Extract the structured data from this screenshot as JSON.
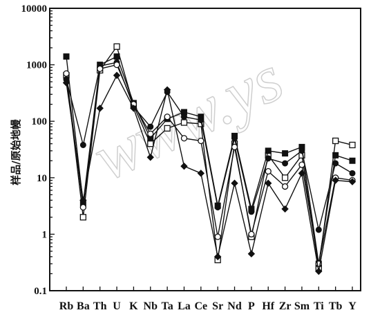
{
  "chart_data": {
    "type": "line",
    "title": "",
    "xlabel": "",
    "ylabel": "样品/原始地幔",
    "y_scale": "log",
    "ylim": [
      0.1,
      10000
    ],
    "y_ticks": [
      "0.1",
      "1",
      "10",
      "100",
      "1000",
      "10000"
    ],
    "categories": [
      "Rb",
      "Ba",
      "Th",
      "U",
      "K",
      "Nb",
      "Ta",
      "La",
      "Ce",
      "Sr",
      "Nd",
      "P",
      "Hf",
      "Zr",
      "Sm",
      "Ti",
      "Tb",
      "Y"
    ],
    "watermark": "www.ys",
    "series": [
      {
        "marker": "square-open",
        "values": [
          650,
          2,
          800,
          2100,
          190,
          40,
          75,
          95,
          90,
          0.35,
          40,
          0.9,
          25,
          10,
          25,
          0.25,
          45,
          38
        ]
      },
      {
        "marker": "square-filled",
        "values": [
          1400,
          3.5,
          1000,
          1400,
          210,
          50,
          110,
          145,
          120,
          3.2,
          55,
          2.8,
          30,
          27,
          35,
          0.3,
          25,
          20
        ]
      },
      {
        "marker": "circle-filled",
        "values": [
          550,
          38,
          950,
          1100,
          180,
          80,
          330,
          120,
          105,
          3,
          50,
          2.5,
          22,
          18,
          30,
          1.2,
          18,
          12
        ]
      },
      {
        "marker": "circle-open",
        "values": [
          700,
          3,
          850,
          1000,
          200,
          60,
          120,
          50,
          45,
          0.9,
          35,
          1,
          13,
          7,
          17,
          0.3,
          10,
          9
        ]
      },
      {
        "marker": "diamond-filled",
        "values": [
          480,
          4,
          170,
          650,
          170,
          23,
          360,
          16,
          12,
          0.4,
          8,
          0.45,
          8,
          2.8,
          12,
          0.22,
          9,
          8.5
        ]
      }
    ]
  }
}
